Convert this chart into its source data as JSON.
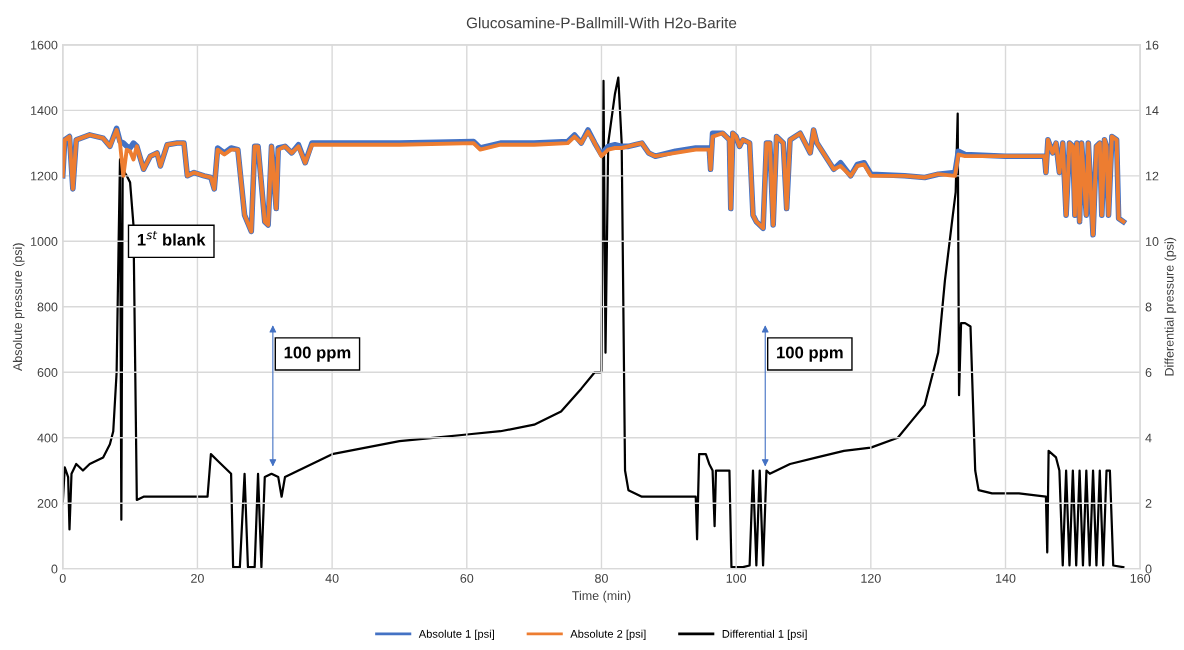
{
  "chart_data": {
    "type": "line",
    "title": "Glucosamine-P-Ballmill-With H2o-Barite",
    "xlabel": "Time (min)",
    "ylabel": "Absolute pressure (psi)",
    "y2label": "Differential pressure (psi)",
    "xlim": [
      0,
      160
    ],
    "xticks": [
      0,
      20,
      40,
      60,
      80,
      100,
      120,
      140,
      160
    ],
    "ylim": [
      0,
      1600
    ],
    "yticks": [
      0,
      200,
      400,
      600,
      800,
      1000,
      1200,
      1400,
      1600
    ],
    "y2lim": [
      0,
      16
    ],
    "y2ticks": [
      0,
      2,
      4,
      6,
      8,
      10,
      12,
      14,
      16
    ],
    "grid": true,
    "legend": "bottom",
    "marker": "none",
    "line_style": "solid",
    "series": [
      {
        "name": "Absolute 1 [psi]",
        "color": "#4472c4",
        "x": [
          0,
          0.3,
          1,
          1.5,
          2,
          4,
          6,
          7,
          8,
          8.5,
          9,
          9.5,
          10,
          10.5,
          11,
          12,
          13,
          14,
          14.5,
          15.5,
          17,
          18,
          18.5,
          19.5,
          21,
          22,
          22.5,
          23,
          24,
          25,
          26,
          27,
          28,
          28.5,
          29,
          30,
          30.5,
          31,
          31.7,
          32,
          33,
          34,
          35,
          36,
          37,
          40,
          50,
          61,
          62,
          65,
          70,
          75,
          76,
          77,
          78,
          79,
          80,
          81,
          82,
          83,
          84,
          85,
          86,
          87,
          88,
          91,
          94,
          96,
          96.2,
          96.5,
          98,
          99,
          99.2,
          99.5,
          100,
          100.5,
          101,
          102,
          102.5,
          103,
          104,
          104.5,
          105,
          105.5,
          106,
          107,
          107.5,
          108,
          109.5,
          111,
          111.5,
          112,
          114.5,
          115.5,
          117,
          118,
          119,
          120,
          125,
          128,
          130,
          132.5,
          133,
          134,
          140,
          145.8,
          146,
          146.3,
          147,
          147.5,
          148,
          148.5,
          149,
          149.5,
          150,
          150.3,
          150.6,
          151,
          151.3,
          152,
          152.3,
          153,
          153.5,
          154,
          154.3,
          154.7,
          155,
          155.3,
          155.8,
          156.5,
          156.8,
          157.5
        ],
        "values": [
          1200,
          1310,
          1320,
          1160,
          1310,
          1325,
          1315,
          1290,
          1345,
          1305,
          1300,
          1290,
          1285,
          1300,
          1290,
          1220,
          1260,
          1270,
          1230,
          1295,
          1300,
          1300,
          1200,
          1210,
          1200,
          1195,
          1160,
          1285,
          1270,
          1285,
          1280,
          1080,
          1030,
          1290,
          1290,
          1060,
          1050,
          1290,
          1100,
          1285,
          1290,
          1270,
          1295,
          1240,
          1300,
          1300,
          1300,
          1305,
          1285,
          1300,
          1300,
          1305,
          1325,
          1300,
          1340,
          1300,
          1265,
          1290,
          1295,
          1290,
          1290,
          1295,
          1300,
          1270,
          1260,
          1275,
          1285,
          1285,
          1220,
          1330,
          1330,
          1310,
          1100,
          1330,
          1320,
          1290,
          1310,
          1300,
          1080,
          1060,
          1040,
          1300,
          1300,
          1050,
          1320,
          1300,
          1100,
          1310,
          1330,
          1270,
          1340,
          1300,
          1220,
          1240,
          1200,
          1235,
          1240,
          1205,
          1200,
          1195,
          1205,
          1210,
          1275,
          1265,
          1260,
          1260,
          1210,
          1310,
          1270,
          1300,
          1210,
          1300,
          1080,
          1300,
          1290,
          1080,
          1300,
          1060,
          1300,
          1080,
          1300,
          1020,
          1290,
          1300,
          1080,
          1310,
          1290,
          1080,
          1320,
          1310,
          1070,
          1060
        ]
      },
      {
        "name": "Absolute 2 [psi]",
        "color": "#ed7d31",
        "x": [
          0,
          0.3,
          1,
          1.5,
          2,
          4,
          6,
          7,
          8,
          8.5,
          9,
          9.5,
          10,
          10.5,
          11,
          12,
          13,
          14,
          14.5,
          15.5,
          17,
          18,
          18.5,
          19.5,
          21,
          22,
          22.5,
          23,
          24,
          25,
          26,
          27,
          28,
          28.5,
          29,
          30,
          30.5,
          31,
          31.7,
          32,
          33,
          34,
          35,
          36,
          37,
          40,
          50,
          61,
          62,
          65,
          70,
          75,
          76,
          77,
          78,
          79,
          80,
          81,
          82,
          83,
          84,
          85,
          86,
          87,
          88,
          91,
          94,
          96,
          96.2,
          96.5,
          98,
          99,
          99.2,
          99.5,
          100,
          100.5,
          101,
          102,
          102.5,
          103,
          104,
          104.5,
          105,
          105.5,
          106,
          107,
          107.5,
          108,
          109.5,
          111,
          111.5,
          112,
          114.5,
          115.5,
          117,
          118,
          119,
          120,
          125,
          128,
          130,
          132.5,
          133,
          134,
          140,
          145.8,
          146,
          146.3,
          147,
          147.5,
          148,
          148.5,
          149,
          149.5,
          150,
          150.3,
          150.6,
          151,
          151.3,
          152,
          152.3,
          153,
          153.5,
          154,
          154.3,
          154.7,
          155,
          155.3,
          155.8,
          156.5,
          156.8,
          157.5
        ],
        "values": [
          1200,
          1310,
          1320,
          1160,
          1310,
          1325,
          1315,
          1290,
          1340,
          1300,
          1200,
          1280,
          1275,
          1250,
          1290,
          1220,
          1260,
          1270,
          1230,
          1295,
          1300,
          1300,
          1200,
          1210,
          1200,
          1195,
          1160,
          1280,
          1265,
          1280,
          1280,
          1080,
          1030,
          1290,
          1290,
          1060,
          1050,
          1290,
          1100,
          1280,
          1290,
          1270,
          1290,
          1240,
          1295,
          1295,
          1295,
          1300,
          1280,
          1295,
          1295,
          1300,
          1320,
          1300,
          1335,
          1300,
          1260,
          1280,
          1285,
          1285,
          1290,
          1295,
          1300,
          1270,
          1260,
          1270,
          1280,
          1280,
          1220,
          1320,
          1330,
          1310,
          1100,
          1330,
          1320,
          1290,
          1310,
          1300,
          1080,
          1060,
          1040,
          1300,
          1300,
          1050,
          1320,
          1300,
          1100,
          1310,
          1330,
          1270,
          1340,
          1300,
          1220,
          1230,
          1200,
          1230,
          1235,
          1200,
          1200,
          1195,
          1205,
          1200,
          1265,
          1260,
          1260,
          1260,
          1210,
          1310,
          1270,
          1300,
          1210,
          1300,
          1080,
          1300,
          1290,
          1080,
          1300,
          1060,
          1300,
          1080,
          1300,
          1020,
          1290,
          1300,
          1080,
          1310,
          1290,
          1080,
          1320,
          1310,
          1070,
          1060
        ]
      },
      {
        "name": "Differential 1 [psi]",
        "color": "#000000",
        "axis": "y2",
        "x": [
          0,
          0.3,
          0.8,
          1,
          1.3,
          2,
          3,
          4,
          5,
          6,
          7,
          7.5,
          8,
          8.3,
          8.5,
          8.7,
          8.9,
          9.5,
          10,
          10.5,
          11,
          12,
          14,
          16,
          18,
          20,
          21.5,
          22,
          23,
          24,
          25,
          25.3,
          26.3,
          27,
          27.5,
          28.5,
          29,
          29.5,
          30,
          31,
          32,
          32.5,
          33,
          35,
          38,
          40,
          45,
          50,
          55,
          60,
          65,
          70,
          74,
          77,
          79,
          80,
          80.3,
          80.6,
          81,
          82,
          82.5,
          83,
          83.5,
          84,
          86,
          90,
          94,
          94.2,
          94.5,
          95.5,
          96,
          96.5,
          96.8,
          97,
          99,
          99.3,
          101,
          102,
          102.5,
          103,
          103.5,
          104,
          104.5,
          105,
          108,
          112,
          116,
          120,
          124,
          126,
          128,
          129,
          130,
          131,
          132,
          132.6,
          132.9,
          133.1,
          133.4,
          134,
          134.8,
          135.5,
          136,
          138,
          142,
          146,
          146.2,
          146.4,
          147.5,
          148,
          148.5,
          149,
          149.5,
          150,
          150.5,
          151,
          151.5,
          152,
          152.5,
          153,
          153.5,
          154,
          154.5,
          155,
          155.5,
          156,
          157.5
        ],
        "values": [
          2,
          3.1,
          2.8,
          1.2,
          2.9,
          3.2,
          3.0,
          3.2,
          3.3,
          3.4,
          3.8,
          4.2,
          6,
          10,
          12.5,
          1.5,
          12.2,
          12,
          11.8,
          10.5,
          2.1,
          2.2,
          2.2,
          2.2,
          2.2,
          2.2,
          2.2,
          3.5,
          3.3,
          3.1,
          2.9,
          0.05,
          0.05,
          2.9,
          0.05,
          0.05,
          2.9,
          0.05,
          2.8,
          2.9,
          2.8,
          2.2,
          2.8,
          3.0,
          3.3,
          3.5,
          3.7,
          3.9,
          4.0,
          4.1,
          4.2,
          4.4,
          4.8,
          5.5,
          6.0,
          6.0,
          14.9,
          6.6,
          13,
          14.5,
          15,
          13,
          3,
          2.4,
          2.2,
          2.2,
          2.2,
          0.9,
          3.5,
          3.5,
          3.2,
          3.0,
          1.3,
          3.0,
          3.0,
          0.05,
          0.05,
          0.1,
          3.0,
          0.1,
          3.0,
          0.1,
          3.0,
          2.9,
          3.2,
          3.4,
          3.6,
          3.7,
          4.0,
          4.5,
          5.0,
          5.8,
          6.6,
          8.8,
          10.5,
          11.5,
          13.9,
          5.3,
          7.5,
          7.5,
          7.4,
          3.0,
          2.4,
          2.3,
          2.3,
          2.2,
          0.5,
          3.6,
          3.4,
          3.0,
          0.1,
          3.0,
          0.1,
          3.0,
          0.1,
          3.0,
          0.1,
          3.0,
          0.1,
          3.0,
          0.1,
          3.0,
          0.1,
          3.0,
          3.0,
          0.1,
          0.05
        ]
      }
    ],
    "annotations": [
      {
        "text": "1$^{st}$ blank",
        "x": 11,
        "y": 1000
      },
      "100 ppm",
      "100 ppm"
    ]
  }
}
